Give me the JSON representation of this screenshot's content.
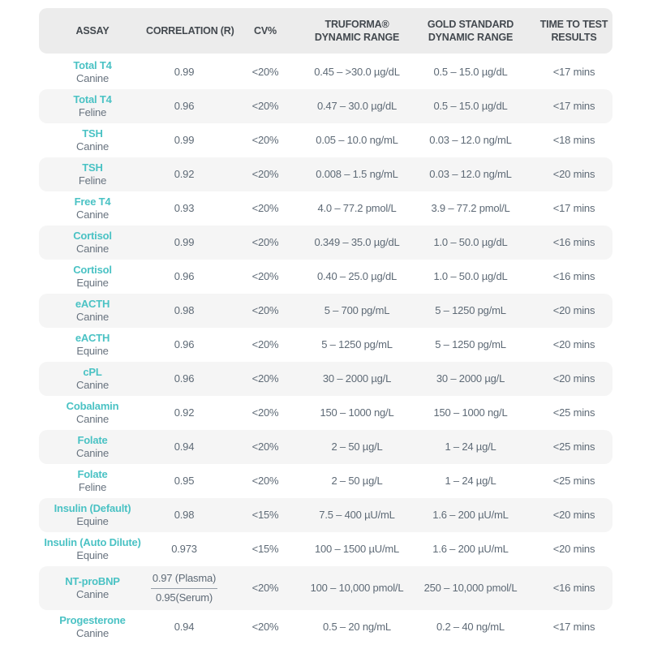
{
  "colors": {
    "accent_teal": "#4ac2c4",
    "header_bg": "#ececec",
    "row_alt_bg": "#f5f5f5",
    "header_text": "#43494f",
    "body_text": "#5e6a76"
  },
  "table": {
    "headers": [
      {
        "lines": [
          "ASSAY"
        ]
      },
      {
        "lines": [
          "CORRELATION (R)"
        ]
      },
      {
        "lines": [
          "CV%"
        ]
      },
      {
        "lines": [
          "TRUFORMA®",
          "DYNAMIC RANGE"
        ]
      },
      {
        "lines": [
          "GOLD STANDARD",
          "DYNAMIC RANGE"
        ]
      },
      {
        "lines": [
          "TIME TO TEST",
          "RESULTS"
        ]
      }
    ],
    "rows": [
      {
        "assay": "Total T4",
        "species": "Canine",
        "correlation": "0.99",
        "cv": "<20%",
        "truforma_range": "0.45 – >30.0 µg/dL",
        "gold_standard_range": "0.5 – 15.0 µg/dL",
        "time_to_result": "<17 mins"
      },
      {
        "assay": "Total T4",
        "species": "Feline",
        "correlation": "0.96",
        "cv": "<20%",
        "truforma_range": "0.47 – 30.0 µg/dL",
        "gold_standard_range": "0.5 – 15.0 µg/dL",
        "time_to_result": "<17 mins"
      },
      {
        "assay": "TSH",
        "species": "Canine",
        "correlation": "0.99",
        "cv": "<20%",
        "truforma_range": "0.05 – 10.0 ng/mL",
        "gold_standard_range": "0.03 – 12.0 ng/mL",
        "time_to_result": "<18 mins"
      },
      {
        "assay": "TSH",
        "species": "Feline",
        "correlation": "0.92",
        "cv": "<20%",
        "truforma_range": "0.008 – 1.5 ng/mL",
        "gold_standard_range": "0.03 – 12.0 ng/mL",
        "time_to_result": "<20 mins"
      },
      {
        "assay": "Free T4",
        "species": "Canine",
        "correlation": "0.93",
        "cv": "<20%",
        "truforma_range": "4.0 – 77.2 pmol/L",
        "gold_standard_range": "3.9 – 77.2 pmol/L",
        "time_to_result": "<17 mins"
      },
      {
        "assay": "Cortisol",
        "species": "Canine",
        "correlation": "0.99",
        "cv": "<20%",
        "truforma_range": "0.349 – 35.0 µg/dL",
        "gold_standard_range": "1.0 – 50.0 µg/dL",
        "time_to_result": "<16 mins"
      },
      {
        "assay": "Cortisol",
        "species": "Equine",
        "correlation": "0.96",
        "cv": "<20%",
        "truforma_range": "0.40 – 25.0 µg/dL",
        "gold_standard_range": "1.0 – 50.0 µg/dL",
        "time_to_result": "<16 mins"
      },
      {
        "assay": "eACTH",
        "species": "Canine",
        "correlation": "0.98",
        "cv": "<20%",
        "truforma_range": "5 – 700 pg/mL",
        "gold_standard_range": "5 – 1250 pg/mL",
        "time_to_result": "<20 mins"
      },
      {
        "assay": "eACTH",
        "species": "Equine",
        "correlation": "0.96",
        "cv": "<20%",
        "truforma_range": "5 – 1250 pg/mL",
        "gold_standard_range": "5 – 1250 pg/mL",
        "time_to_result": "<20 mins"
      },
      {
        "assay": "cPL",
        "species": "Canine",
        "correlation": "0.96",
        "cv": "<20%",
        "truforma_range": "30 – 2000 µg/L",
        "gold_standard_range": "30 – 2000 µg/L",
        "time_to_result": "<20 mins"
      },
      {
        "assay": "Cobalamin",
        "species": "Canine",
        "correlation": "0.92",
        "cv": "<20%",
        "truforma_range": "150 – 1000 ng/L",
        "gold_standard_range": "150 – 1000 ng/L",
        "time_to_result": "<25 mins"
      },
      {
        "assay": "Folate",
        "species": "Canine",
        "correlation": "0.94",
        "cv": "<20%",
        "truforma_range": "2 – 50 µg/L",
        "gold_standard_range": "1 – 24 µg/L",
        "time_to_result": "<25 mins"
      },
      {
        "assay": "Folate",
        "species": "Feline",
        "correlation": "0.95",
        "cv": "<20%",
        "truforma_range": "2 – 50 µg/L",
        "gold_standard_range": "1 – 24 µg/L",
        "time_to_result": "<25 mins"
      },
      {
        "assay": "Insulin (Default)",
        "species": "Equine",
        "correlation": "0.98",
        "cv": "<15%",
        "truforma_range": "7.5 – 400 µU/mL",
        "gold_standard_range": "1.6 – 200 µU/mL",
        "time_to_result": "<20 mins"
      },
      {
        "assay": "Insulin (Auto Dilute)",
        "species": "Equine",
        "correlation": "0.973",
        "cv": "<15%",
        "truforma_range": "100 – 1500 µU/mL",
        "gold_standard_range": "1.6 – 200 µU/mL",
        "time_to_result": "<20 mins"
      },
      {
        "assay": "NT-proBNP",
        "species": "Canine",
        "correlation": "0.97 (Plasma)",
        "correlation_secondary": "0.95(Serum)",
        "cv": "<20%",
        "truforma_range": "100 – 10,000 pmol/L",
        "gold_standard_range": "250 – 10,000 pmol/L",
        "time_to_result": "<16 mins"
      },
      {
        "assay": "Progesterone",
        "species": "Canine",
        "correlation": "0.94",
        "cv": "<20%",
        "truforma_range": "0.5 – 20 ng/mL",
        "gold_standard_range": "0.2 – 40 ng/mL",
        "time_to_result": "<17 mins"
      }
    ]
  }
}
